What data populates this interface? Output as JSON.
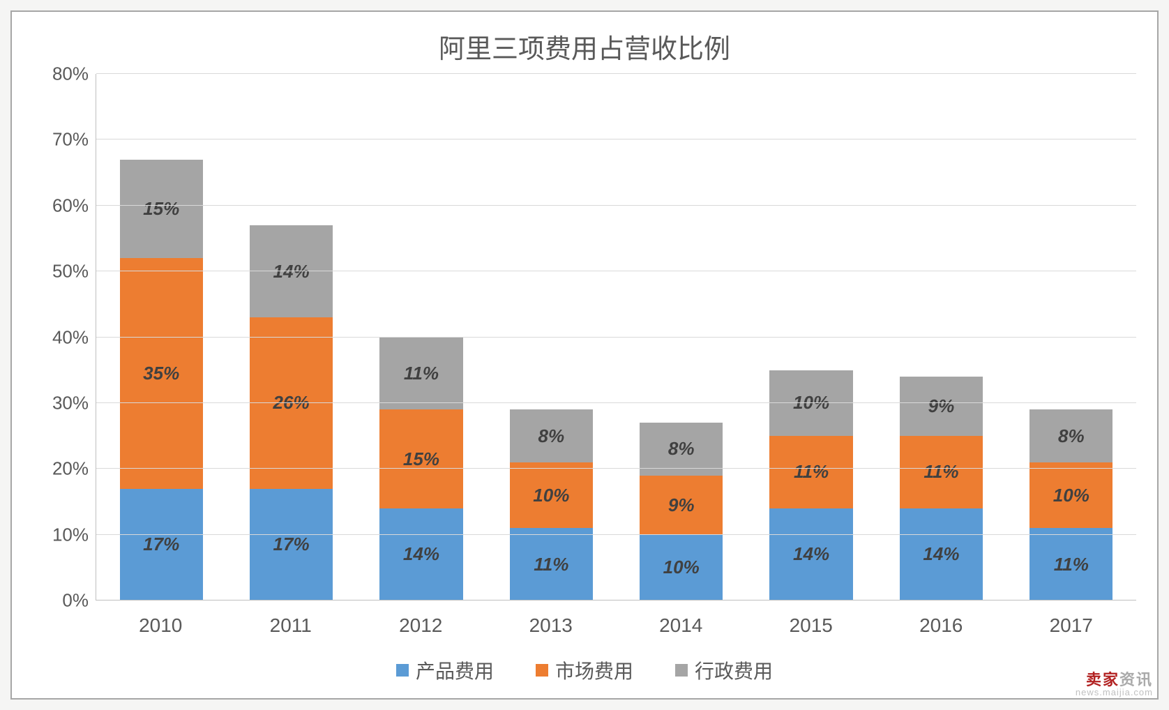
{
  "chart": {
    "type": "stacked-bar",
    "title": "阿里三项费用占营收比例",
    "title_fontsize": 38,
    "title_color": "#595959",
    "background_color": "#ffffff",
    "frame_border_color": "#a6a6a6",
    "grid_color": "#d9d9d9",
    "axis_line_color": "#bfbfbf",
    "axis_label_color": "#595959",
    "axis_label_fontsize": 26,
    "x_label_fontsize": 28,
    "data_label_fontsize": 26,
    "data_label_fontstyle": "italic",
    "data_label_fontweight": 600,
    "data_label_color": "#404040",
    "bar_width_pct": 64,
    "ylim": [
      0,
      80
    ],
    "ytick_step": 10,
    "y_unit": "%",
    "categories": [
      "2010",
      "2011",
      "2012",
      "2013",
      "2014",
      "2015",
      "2016",
      "2017"
    ],
    "series": [
      {
        "key": "product",
        "label": "产品费用",
        "color": "#5b9bd5",
        "values": [
          17,
          17,
          14,
          11,
          10,
          14,
          14,
          11
        ]
      },
      {
        "key": "market",
        "label": "市场费用",
        "color": "#ed7d31",
        "values": [
          35,
          26,
          15,
          10,
          9,
          11,
          11,
          10
        ]
      },
      {
        "key": "admin",
        "label": "行政费用",
        "color": "#a5a5a5",
        "values": [
          15,
          14,
          11,
          8,
          8,
          10,
          9,
          8
        ]
      }
    ],
    "stack_totals": [
      67,
      57,
      40,
      29,
      27,
      35,
      34,
      29
    ]
  },
  "legend": {
    "items": [
      {
        "label": "产品费用",
        "color": "#5b9bd5"
      },
      {
        "label": "市场费用",
        "color": "#ed7d31"
      },
      {
        "label": "行政费用",
        "color": "#a5a5a5"
      }
    ],
    "fontsize": 28,
    "text_color": "#595959",
    "swatch_size": 18
  },
  "watermark": {
    "brand_red": "卖家",
    "brand_gray": "资讯",
    "sub": "news.maijia.com",
    "red_color": "#b22222",
    "gray_color": "#aaaaaa",
    "sub_color": "#c0c0c0"
  }
}
